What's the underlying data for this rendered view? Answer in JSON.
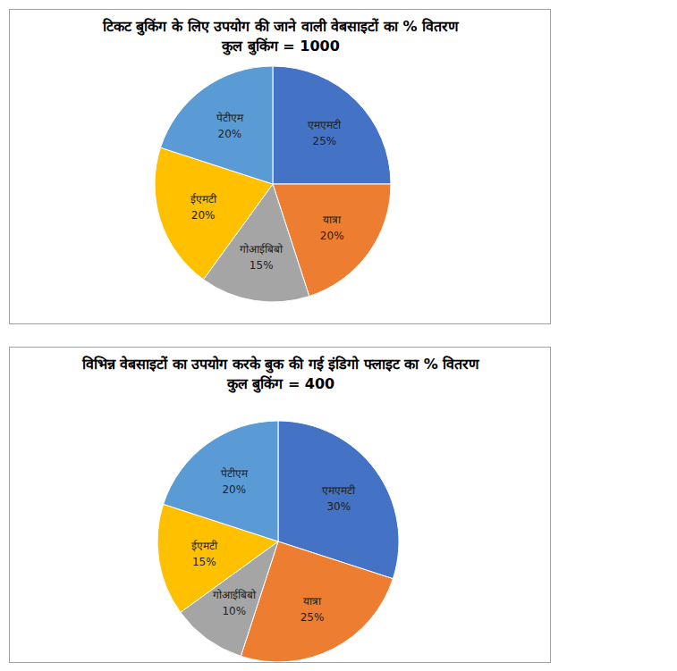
{
  "chart_data": [
    {
      "type": "pie",
      "title": "टिकट बुकिंग के लिए उपयोग की जाने वाली वेबसाइटों का % वितरण",
      "subtitle": "कुल बुकिंग = 1000",
      "categories": [
        "एमएमटी",
        "यात्रा",
        "गोआईबिबो",
        "ईएमटी",
        "पेटीएम"
      ],
      "values": [
        25,
        20,
        15,
        20,
        20
      ],
      "value_labels": [
        "25%",
        "20%",
        "15%",
        "20%",
        "20%"
      ],
      "colors": [
        "#4472c4",
        "#ed7d31",
        "#a5a5a5",
        "#ffc000",
        "#5b9bd5"
      ],
      "data_labels": true
    },
    {
      "type": "pie",
      "title": "विभिन्न वेबसाइटों का उपयोग करके बुक की गई इंडिगो फ्लाइट का % वितरण",
      "subtitle": "कुल बुकिंग = 400",
      "categories": [
        "एमएमटी",
        "यात्रा",
        "गोआईबिबो",
        "ईएमटी",
        "पेटीएम"
      ],
      "values": [
        30,
        25,
        10,
        15,
        20
      ],
      "value_labels": [
        "30%",
        "25%",
        "10%",
        "15%",
        "20%"
      ],
      "colors": [
        "#4472c4",
        "#ed7d31",
        "#a5a5a5",
        "#ffc000",
        "#5b9bd5"
      ],
      "data_labels": true
    }
  ]
}
